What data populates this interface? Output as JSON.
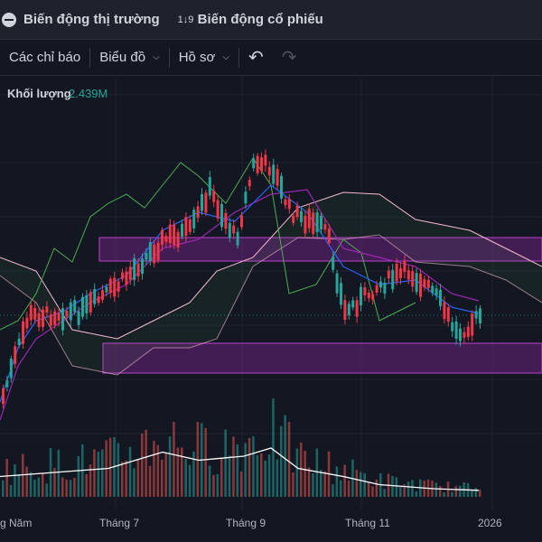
{
  "header": {
    "tabs": [
      {
        "label": "Biến động thị trường",
        "icon": "globe-icon"
      },
      {
        "label": "Biến động cổ phiếu",
        "icon": "sort-numeric-icon",
        "icon_glyph": "1↓9"
      }
    ]
  },
  "toolbar": {
    "indicators_label": "Các chỉ báo",
    "chart_type_label": "Biểu đồ",
    "template_label": "Hồ sơ",
    "undo_glyph": "↶",
    "redo_glyph": "↷",
    "chevron_glyph": "⌵"
  },
  "legend": {
    "name": "Khối lượng",
    "value": "2.439M"
  },
  "x_axis": {
    "labels": [
      "g Năm",
      "Tháng 7",
      "Tháng 9",
      "Tháng 11",
      "2026"
    ]
  },
  "colors": {
    "background": "#131722",
    "up": "#26a69a",
    "down": "#ef5350",
    "candle_main": "#f23645",
    "cloud_pink": "#e91e63",
    "cloud_purple": "#9c27b0",
    "kijun_green": "#4caf50",
    "tenkan_blue": "#2962ff",
    "volume_line": "#ffffff"
  }
}
